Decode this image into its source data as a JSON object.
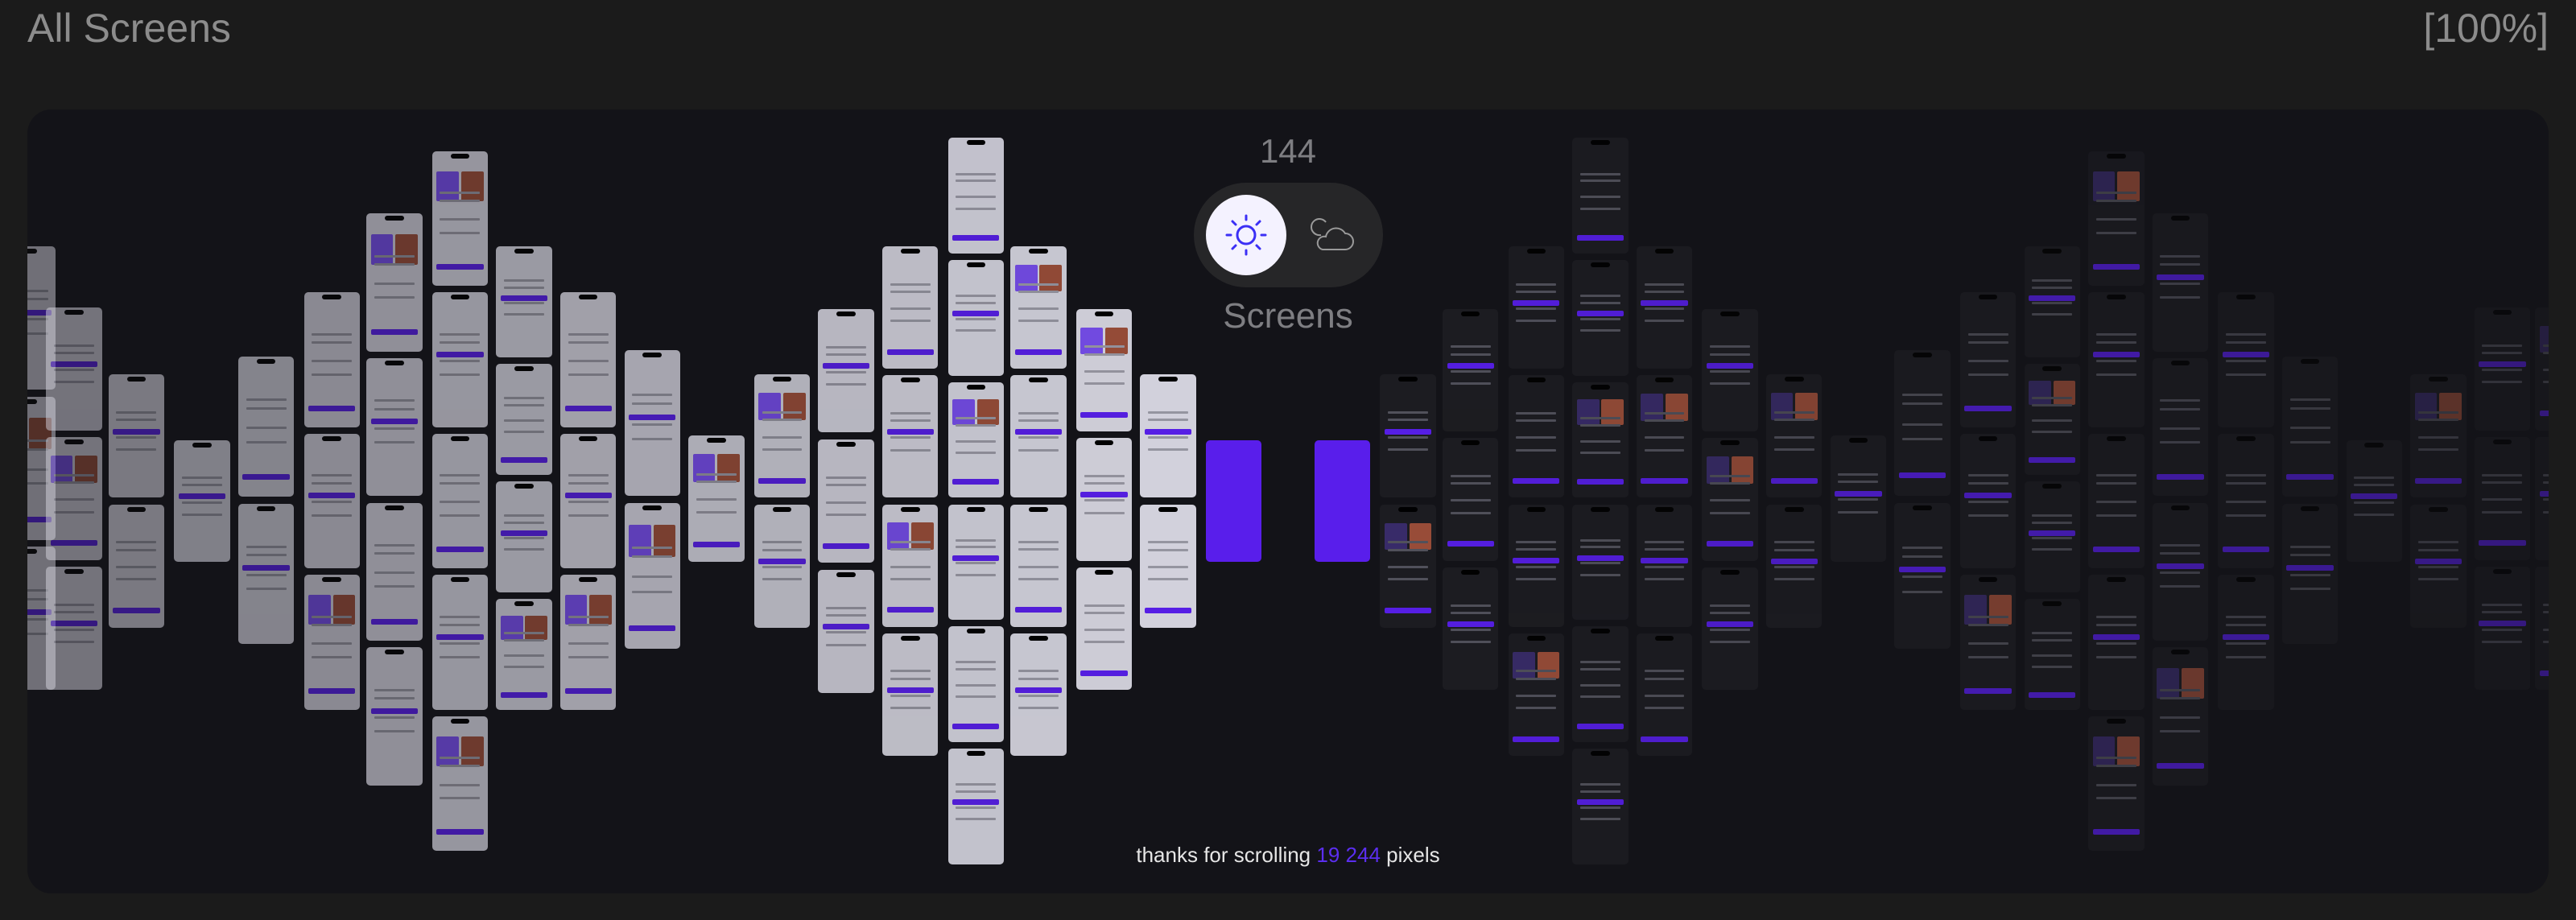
{
  "header": {
    "title": "All Screens",
    "zoom_label": "[100%]"
  },
  "counter": {
    "count": "144",
    "label": "Screens"
  },
  "theme_toggle": {
    "selected": "light",
    "options": [
      {
        "icon": "sun-icon",
        "value": "light"
      },
      {
        "icon": "moon-cloud-icon",
        "value": "dark"
      }
    ]
  },
  "footer": {
    "prefix": "thanks for scrolling",
    "pixels": "19 244",
    "suffix": "pixels"
  },
  "colors": {
    "accent": "#5b2ef0",
    "background": "#1b1b1b",
    "panel": "#131318",
    "light_screen": "#dddce7",
    "dark_screen": "#1d1d22"
  }
}
